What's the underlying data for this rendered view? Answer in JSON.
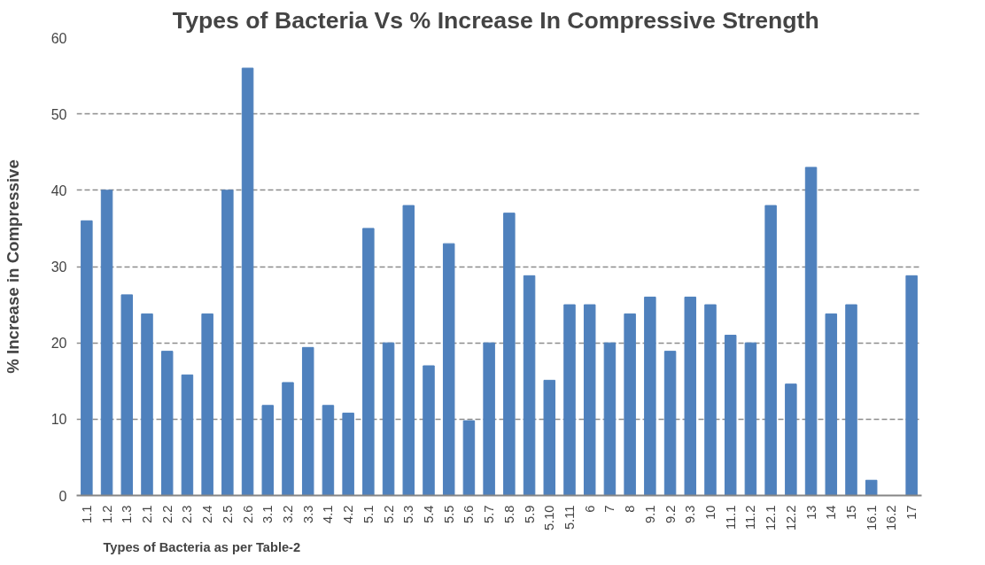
{
  "chart_data": {
    "type": "bar",
    "title": "Types of Bacteria Vs % Increase In Compressive  Strength",
    "xlabel": "Types of Bacteria as per Table-2",
    "ylabel": "% Increase in Compressive",
    "categories": [
      "1.1",
      "1.2",
      "1.3",
      "2.1",
      "2.2",
      "2.3",
      "2.4",
      "2.5",
      "2.6",
      "3.1",
      "3.2",
      "3.3",
      "4.1",
      "4.2",
      "5.1",
      "5.2",
      "5.3",
      "5.4",
      "5.5",
      "5.6",
      "5.7",
      "5.8",
      "5.9",
      "5.10",
      "5.11",
      "6",
      "7",
      "8",
      "9.1",
      "9.2",
      "9.3",
      "10",
      "11.1",
      "11.2",
      "12.1",
      "12.2",
      "13",
      "14",
      "15",
      "16.1",
      "16.2",
      "17"
    ],
    "values": [
      36,
      40,
      26.3,
      23.8,
      18.9,
      15.8,
      23.8,
      40,
      56,
      11.8,
      14.8,
      19.4,
      11.8,
      10.8,
      35,
      20,
      38,
      17,
      33,
      9.8,
      20,
      37,
      28.8,
      15.1,
      25,
      25,
      20,
      23.8,
      26,
      18.9,
      26,
      25,
      21,
      20,
      38,
      14.6,
      43,
      23.8,
      25,
      2,
      0,
      28.8
    ],
    "color": "#4f81bd",
    "ylim": [
      0,
      60
    ],
    "yticks": [
      0,
      10,
      20,
      30,
      40,
      50,
      60
    ],
    "grid": "y"
  }
}
